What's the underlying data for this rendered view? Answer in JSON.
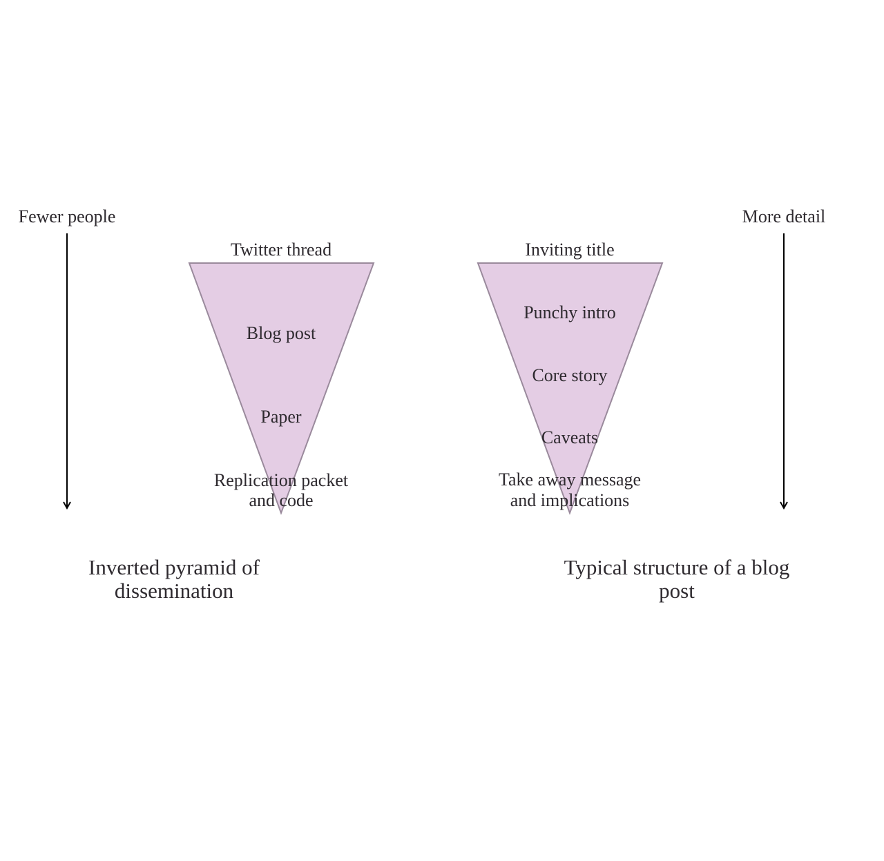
{
  "axes": {
    "left_label": "Fewer people",
    "right_label": "More detail"
  },
  "left_pyramid": {
    "top_label": "Twitter thread",
    "levels": [
      "Blog post",
      "Paper",
      "Replication packet",
      "and code"
    ],
    "caption_line1": "Inverted pyramid of",
    "caption_line2": "dissemination"
  },
  "right_pyramid": {
    "top_label": "Inviting title",
    "levels": [
      "Punchy intro",
      "Core story",
      "Caveats",
      "Take away message",
      "and implications"
    ],
    "caption_line1": "Typical structure of a blog",
    "caption_line2": "post"
  },
  "colors": {
    "triangle_fill": "#e4cde4",
    "triangle_stroke": "#9a8a9c",
    "arrow": "#000000",
    "text": "#2e2a2f"
  }
}
